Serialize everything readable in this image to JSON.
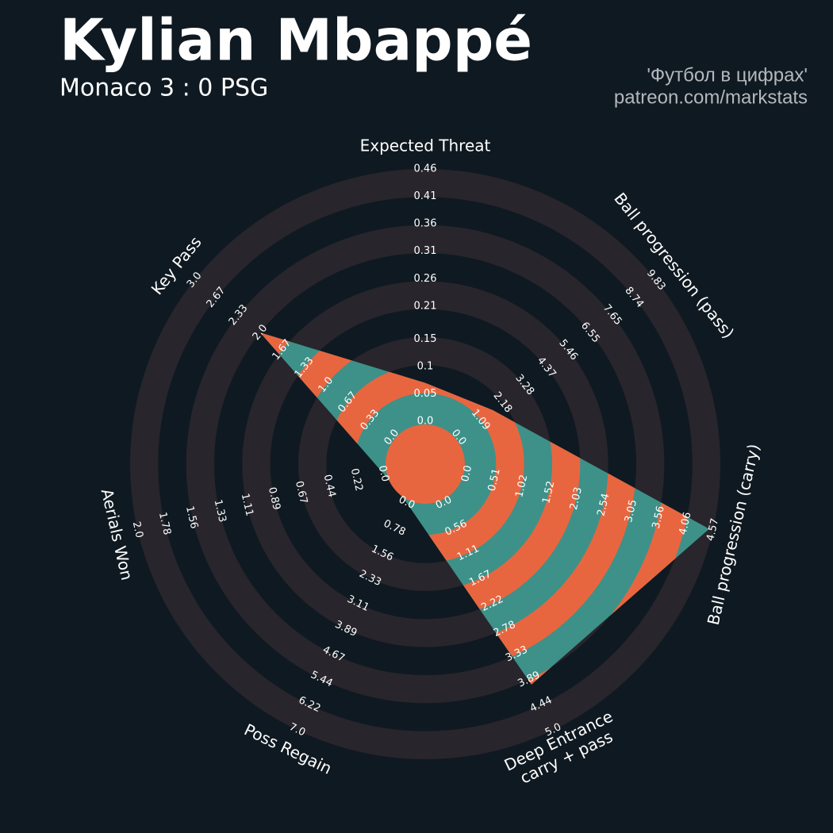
{
  "chart_data": {
    "type": "radar",
    "title": "Kylian Mbappé",
    "subtitle": "Monaco 3 : 0 PSG",
    "credits": [
      "'Футбол в цифрах'",
      "patreon.com/markstats"
    ],
    "colors": {
      "fill": "#3d9189",
      "alt": "#e8663f",
      "ring": "#28252c",
      "background": "#0f1921"
    },
    "axes": [
      {
        "label": [
          "Expected Threat"
        ],
        "lim": [
          0,
          0.46
        ],
        "ticks": [
          {
            "value": 0,
            "label": "0.0"
          },
          0.05,
          0.1,
          0.15,
          0.21,
          0.26,
          0.31,
          0.36,
          0.41,
          0.46
        ]
      },
      {
        "label": [
          "Ball progression (pass)"
        ],
        "lim": [
          0,
          9.83
        ],
        "ticks": [
          {
            "value": 0,
            "label": "0.0"
          },
          1.09,
          2.18,
          3.28,
          4.37,
          5.46,
          6.55,
          7.65,
          8.74,
          9.83
        ]
      },
      {
        "label": [
          "Ball progression (carry)"
        ],
        "lim": [
          0,
          4.57
        ],
        "ticks": [
          {
            "value": 0,
            "label": "0.0"
          },
          0.51,
          1.02,
          1.52,
          2.03,
          2.54,
          3.05,
          3.56,
          4.06,
          4.57
        ]
      },
      {
        "label": [
          "Deep Entrance",
          "carry + pass"
        ],
        "lim": [
          0,
          5
        ],
        "ticks": [
          {
            "value": 0,
            "label": "0.0"
          },
          0.56,
          1.11,
          1.67,
          2.22,
          2.78,
          3.33,
          3.89,
          4.44,
          {
            "value": 5,
            "label": "5.0"
          }
        ]
      },
      {
        "label": [
          "Poss Regain"
        ],
        "lim": [
          0,
          7
        ],
        "ticks": [
          {
            "value": 0,
            "label": "0.0"
          },
          0.78,
          1.56,
          2.33,
          3.11,
          3.89,
          4.67,
          5.44,
          6.22,
          {
            "value": 7,
            "label": "7.0"
          }
        ]
      },
      {
        "label": [
          "Aerials Won"
        ],
        "lim": [
          0,
          2
        ],
        "ticks": [
          {
            "value": 0,
            "label": "0.0"
          },
          0.22,
          0.44,
          0.67,
          0.89,
          1.11,
          1.33,
          1.56,
          1.78,
          {
            "value": 2,
            "label": "2.0"
          }
        ]
      },
      {
        "label": [
          "Key Pass"
        ],
        "lim": [
          0,
          3
        ],
        "ticks": [
          {
            "value": 0,
            "label": "0.0"
          },
          0.33,
          0.67,
          {
            "value": 1,
            "label": "1.0"
          },
          1.33,
          1.67,
          {
            "value": 2,
            "label": "2.0"
          },
          2.33,
          2.67,
          {
            "value": 3,
            "label": "3.0"
          }
        ]
      }
    ],
    "values": [
      0.07,
      1.7,
      4.5,
      4.0,
      0,
      0,
      2.0
    ]
  }
}
